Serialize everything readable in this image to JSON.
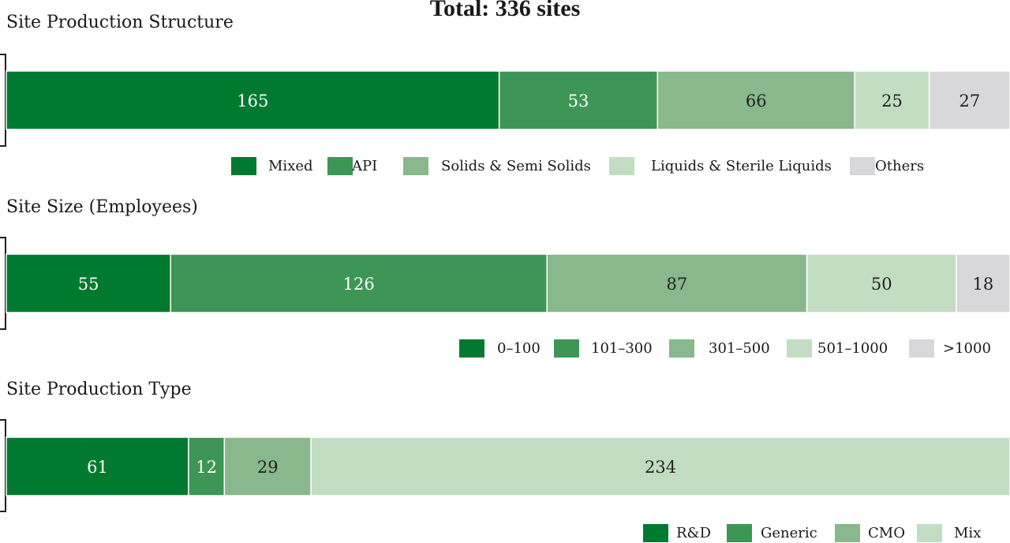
{
  "chart_title": "Total: 336 sites",
  "chart_data": [
    {
      "type": "bar",
      "orientation": "horizontal-stacked",
      "title": "Site Production Structure",
      "categories": [
        "Mixed",
        "API",
        "Solids & Semi Solids",
        "Liquids & Sterile Liquids",
        "Others"
      ],
      "values": [
        165,
        53,
        66,
        25,
        27
      ],
      "colors": [
        "#007a2f",
        "#3d9656",
        "#88b88b",
        "#c3ddc3",
        "#d8d8da"
      ],
      "label_colors": [
        "#ffffff",
        "#ffffff",
        "#222222",
        "#222222",
        "#222222"
      ],
      "legend": "bottom"
    },
    {
      "type": "bar",
      "orientation": "horizontal-stacked",
      "title": "Site Size (Employees)",
      "categories": [
        "0–100",
        "101–300",
        "301–500",
        "501–1000",
        ">1000"
      ],
      "values": [
        55,
        126,
        87,
        50,
        18
      ],
      "colors": [
        "#007a2f",
        "#3d9656",
        "#88b88b",
        "#c3ddc3",
        "#d8d8da"
      ],
      "label_colors": [
        "#ffffff",
        "#ffffff",
        "#222222",
        "#222222",
        "#222222"
      ],
      "legend": "bottom-right"
    },
    {
      "type": "bar",
      "orientation": "horizontal-stacked",
      "title": "Site Production Type",
      "categories": [
        "R&D",
        "Generic",
        "CMO",
        "Mix"
      ],
      "values": [
        61,
        12,
        29,
        234
      ],
      "colors": [
        "#007a2f",
        "#3d9656",
        "#88b88b",
        "#c3ddc3"
      ],
      "label_colors": [
        "#ffffff",
        "#ffffff",
        "#222222",
        "#222222"
      ],
      "legend": "bottom-right"
    }
  ]
}
